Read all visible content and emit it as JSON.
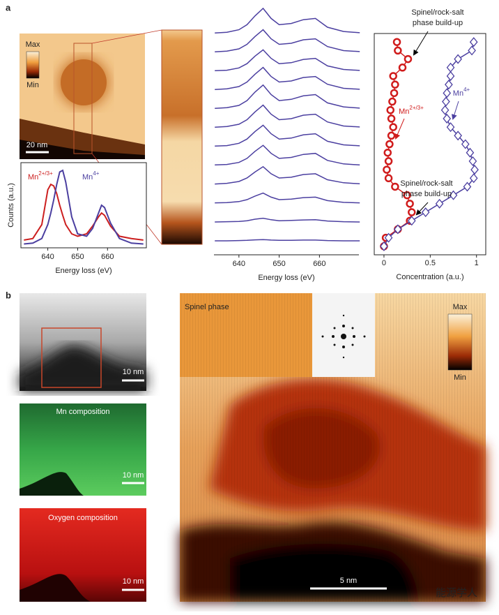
{
  "panel_labels": [
    "a",
    "b"
  ],
  "images": {
    "a_max": "Max",
    "a_min": "Min",
    "a_scale": "20 nm",
    "b_gray_scale": "10 nm",
    "b_mn_title": "Mn composition",
    "b_mn_scale": "10 nm",
    "b_o_title": "Oxygen composition",
    "b_o_scale": "10 nm",
    "b_inset_title": "Spinel phase",
    "b_max": "Max",
    "b_min": "Min",
    "b_scale": "5 nm",
    "watermark": "能源学人"
  },
  "chart_data": [
    {
      "type": "line",
      "x_label": "Energy loss (eV)",
      "y_label": "Counts (a.u.)",
      "x": [
        632,
        635,
        638,
        640,
        641,
        642,
        643,
        644,
        645,
        646,
        648,
        650,
        653,
        655,
        657,
        658,
        659,
        661,
        664,
        668,
        672
      ],
      "series": [
        {
          "name": "Mn",
          "charge": "2+/3+",
          "color": "#cc1f1f",
          "values": [
            0.1,
            0.12,
            0.3,
            0.75,
            0.82,
            0.8,
            0.7,
            0.55,
            0.42,
            0.3,
            0.18,
            0.15,
            0.18,
            0.28,
            0.4,
            0.45,
            0.42,
            0.28,
            0.15,
            0.12,
            0.1
          ]
        },
        {
          "name": "Mn",
          "charge": "4+",
          "color": "#4b3fa0",
          "values": [
            0.05,
            0.06,
            0.12,
            0.3,
            0.45,
            0.62,
            0.82,
            0.98,
            1.0,
            0.85,
            0.4,
            0.18,
            0.15,
            0.25,
            0.45,
            0.55,
            0.52,
            0.32,
            0.12,
            0.06,
            0.05
          ]
        }
      ],
      "xlim": [
        631,
        673
      ],
      "xticks": [
        640,
        650,
        660
      ],
      "ylim": [
        0,
        1.1
      ]
    },
    {
      "type": "ridgeline",
      "x_label": "Energy loss (eV)",
      "x": [
        634,
        637,
        640,
        642,
        644,
        646,
        648,
        650,
        653,
        656,
        659,
        662,
        666,
        670
      ],
      "series": [
        {
          "color": "#4b3fa0",
          "values": [
            0.02,
            0.05,
            0.15,
            0.35,
            0.7,
            1.0,
            0.6,
            0.35,
            0.4,
            0.55,
            0.6,
            0.25,
            0.08,
            0.03
          ]
        },
        {
          "color": "#4b3fa0",
          "values": [
            0.02,
            0.05,
            0.14,
            0.32,
            0.63,
            0.9,
            0.54,
            0.32,
            0.36,
            0.5,
            0.54,
            0.23,
            0.07,
            0.03
          ]
        },
        {
          "color": "#4b3fa0",
          "values": [
            0.02,
            0.04,
            0.13,
            0.3,
            0.6,
            0.85,
            0.51,
            0.3,
            0.34,
            0.47,
            0.51,
            0.21,
            0.07,
            0.03
          ]
        },
        {
          "color": "#4b3fa0",
          "values": [
            0.02,
            0.05,
            0.14,
            0.32,
            0.63,
            0.9,
            0.54,
            0.32,
            0.36,
            0.5,
            0.54,
            0.23,
            0.07,
            0.03
          ]
        },
        {
          "color": "#4b3fa0",
          "values": [
            0.02,
            0.05,
            0.14,
            0.33,
            0.67,
            0.95,
            0.57,
            0.33,
            0.38,
            0.52,
            0.57,
            0.24,
            0.08,
            0.03
          ]
        },
        {
          "color": "#4b3fa0",
          "values": [
            0.02,
            0.05,
            0.14,
            0.32,
            0.63,
            0.9,
            0.54,
            0.32,
            0.36,
            0.5,
            0.54,
            0.23,
            0.07,
            0.03
          ]
        },
        {
          "color": "#4b3fa0",
          "values": [
            0.02,
            0.04,
            0.13,
            0.3,
            0.6,
            0.85,
            0.51,
            0.3,
            0.34,
            0.47,
            0.51,
            0.21,
            0.07,
            0.03
          ]
        },
        {
          "color": "#4b3fa0",
          "values": [
            0.02,
            0.04,
            0.12,
            0.28,
            0.56,
            0.8,
            0.48,
            0.28,
            0.32,
            0.44,
            0.48,
            0.2,
            0.06,
            0.02
          ]
        },
        {
          "color": "#4b3fa0",
          "values": [
            0.01,
            0.04,
            0.11,
            0.25,
            0.49,
            0.7,
            0.42,
            0.25,
            0.28,
            0.39,
            0.42,
            0.18,
            0.06,
            0.02
          ]
        },
        {
          "color": "#4b3fa0",
          "values": [
            0.01,
            0.02,
            0.06,
            0.14,
            0.28,
            0.4,
            0.24,
            0.14,
            0.16,
            0.22,
            0.24,
            0.1,
            0.03,
            0.01
          ]
        },
        {
          "color": "#4b3fa0",
          "values": [
            0.0,
            0.01,
            0.02,
            0.05,
            0.11,
            0.15,
            0.09,
            0.05,
            0.06,
            0.08,
            0.09,
            0.04,
            0.01,
            0.0
          ]
        },
        {
          "color": "#4b3fa0",
          "values": [
            0,
            0,
            0.01,
            0.02,
            0.04,
            0.05,
            0.03,
            0.02,
            0.02,
            0.03,
            0.03,
            0.01,
            0,
            0
          ]
        }
      ],
      "xlim": [
        633.8,
        669.8
      ],
      "xticks": [
        640,
        650,
        660
      ]
    },
    {
      "type": "scatter",
      "x_label": "Concentration (a.u.)",
      "y": [
        0,
        1,
        2,
        3,
        4,
        5,
        6,
        7,
        8,
        9,
        10,
        11,
        12,
        13,
        14,
        15,
        16,
        17,
        18,
        19,
        20,
        21,
        22,
        23,
        24
      ],
      "series": [
        {
          "name": "Mn",
          "charge": "2+/3+",
          "color": "#d01c1c",
          "marker": "circle",
          "x": [
            0.0,
            0.02,
            0.15,
            0.28,
            0.3,
            0.28,
            0.25,
            0.12,
            0.05,
            0.03,
            0.05,
            0.04,
            0.06,
            0.08,
            0.1,
            0.08,
            0.07,
            0.09,
            0.11,
            0.12,
            0.1,
            0.2,
            0.26,
            0.15,
            0.14
          ]
        },
        {
          "name": "Mn",
          "charge": "4+",
          "color": "#4b3fa0",
          "marker": "diamond",
          "x": [
            0.0,
            0.05,
            0.15,
            0.3,
            0.45,
            0.6,
            0.75,
            0.9,
            0.97,
            0.98,
            0.96,
            0.93,
            0.88,
            0.8,
            0.72,
            0.68,
            0.66,
            0.67,
            0.68,
            0.7,
            0.72,
            0.72,
            0.8,
            0.95,
            0.97
          ]
        }
      ],
      "annotations": [
        [
          "Spinel/rock-salt",
          "phase build-up"
        ],
        [
          "Spinel/rock-salt",
          "phase build-up"
        ]
      ],
      "xlim": [
        -0.105,
        1.1
      ],
      "xticks": [
        0,
        0.5,
        1
      ],
      "ylim": [
        -1,
        25
      ]
    }
  ]
}
